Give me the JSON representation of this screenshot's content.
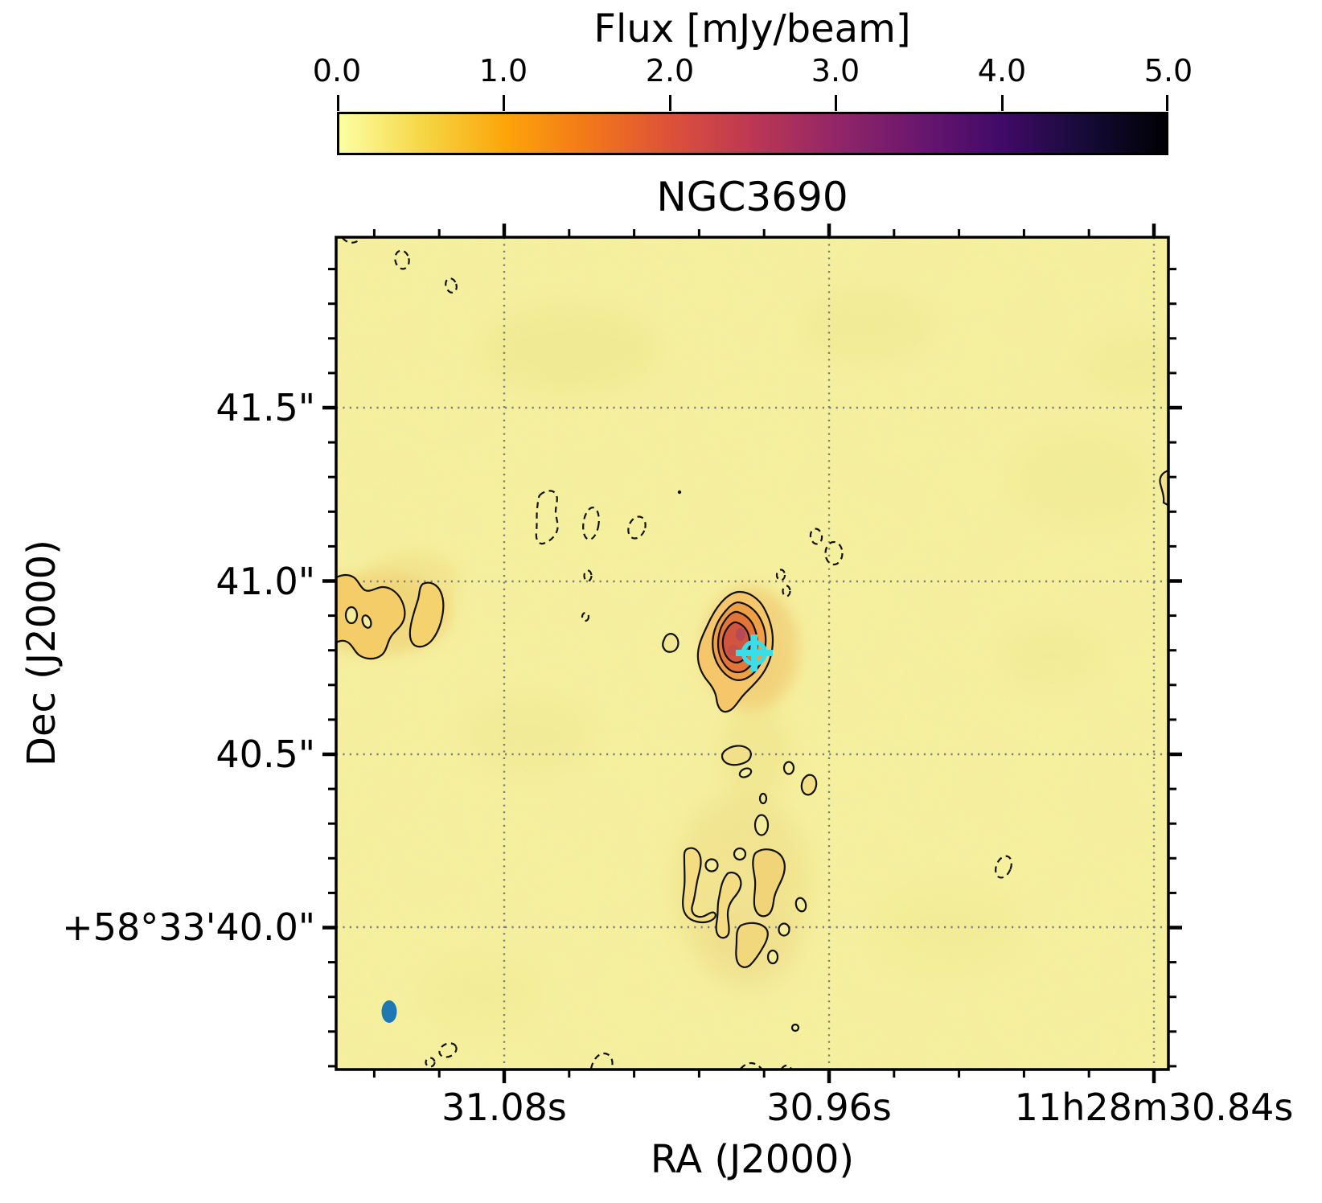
{
  "colorbar": {
    "title": "Flux [mJy/beam]",
    "ticks": [
      "0.0",
      "1.0",
      "2.0",
      "3.0",
      "4.0",
      "5.0"
    ],
    "range": [
      0.0,
      5.0
    ],
    "gradient": [
      "#fcffa4",
      "#f6d746",
      "#fca50a",
      "#f37819",
      "#dd513a",
      "#bc3754",
      "#932667",
      "#6a176e",
      "#420a68",
      "#160b39",
      "#000004"
    ]
  },
  "plot": {
    "title": "NGC3690",
    "xlabel": "RA (J2000)",
    "ylabel": "Dec (J2000)"
  },
  "x_ticks": [
    "31.08s",
    "30.96s",
    "11h28m30.84s"
  ],
  "y_ticks": [
    "41.5\"",
    "41.0\"",
    "40.5\"",
    "+58°33'40.0\""
  ],
  "colors": {
    "background_sky": "#f5f09e",
    "contour_line": "#111111",
    "grid": "#7d7d7d",
    "beam_ellipse": "#1f77b4",
    "source_marker": "#38dfe8",
    "source_core": "#d1543f"
  },
  "chart_data": {
    "type": "heatmap",
    "title": "NGC3690",
    "xlabel": "RA (J2000)",
    "ylabel": "Dec (J2000)",
    "x_tick_labels": [
      "31.08s",
      "30.96s",
      "11h28m30.84s"
    ],
    "x_tick_ra_seconds": [
      31.08,
      30.96,
      30.84
    ],
    "x_axis_range_ra_seconds": [
      31.142,
      30.834
    ],
    "y_tick_labels": [
      "41.5\"",
      "41.0\"",
      "40.5\"",
      "+58°33'40.0\""
    ],
    "y_tick_dec_arcsec": [
      41.5,
      41.0,
      40.5,
      40.0
    ],
    "y_axis_range_dec_arcsec": [
      39.6,
      41.99
    ],
    "colorbar": {
      "label": "Flux [mJy/beam]",
      "ticks": [
        0.0,
        1.0,
        2.0,
        3.0,
        4.0,
        5.0
      ],
      "range": [
        0.0,
        5.0
      ],
      "colormap": "inferno reversed (pale yellow -> orange -> red -> purple -> black)"
    },
    "grid": "grey dotted lines at major ticks",
    "contours": {
      "positive": "solid black",
      "negative": "dashed black"
    },
    "features": [
      {
        "name": "compact peak source",
        "ra_s": 30.99,
        "dec_arcsec": 40.79,
        "peak_flux_mJy_per_beam": 2.8,
        "n_solid_contour_levels": 4,
        "marker": "cyan cross with circle"
      },
      {
        "name": "extended low-level emission at left (west) edge",
        "ra_s": 31.13,
        "dec_arcsec": 40.85,
        "flux_mJy_per_beam": 0.6
      },
      {
        "name": "chain of faint clumps south of peak",
        "ra_s": 30.99,
        "dec_arcsec": 40.2,
        "flux_mJy_per_beam": 0.4
      },
      {
        "name": "scattered negative (dashed) contours",
        "flux_mJy_per_beam": -0.2
      },
      {
        "name": "synthesized beam ellipse",
        "ra_s": 31.12,
        "dec_arcsec": 39.76,
        "color": "#1f77b4"
      }
    ]
  }
}
